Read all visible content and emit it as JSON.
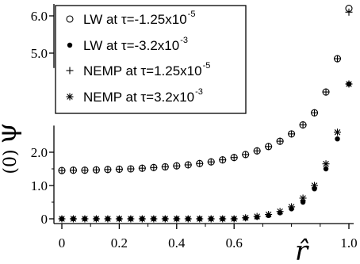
{
  "chart_data": {
    "type": "scatter",
    "xlabel": "r̂",
    "ylabel": "ψ̂",
    "ylabel_superscript": "(0)",
    "xlim": [
      -0.02,
      1.02
    ],
    "ylim": [
      -0.1,
      6.4
    ],
    "y_axis_break": [
      2.8,
      4.6
    ],
    "x_ticks": [
      0,
      0.2,
      0.4,
      0.6,
      1.0
    ],
    "x_tick_labels": [
      "0",
      "0.2",
      "0.4",
      "0.6",
      "1.0"
    ],
    "y_ticks": [
      0,
      1.0,
      2.0,
      5.0,
      6.0
    ],
    "y_tick_labels": [
      "0",
      "1.0",
      "2.0",
      "5.0",
      "6.0"
    ],
    "legend_position": "top-left",
    "series": [
      {
        "name": "LW at τ=-1.25x10",
        "exp": "-5",
        "marker": "open-circle",
        "x": [
          0,
          0.04,
          0.08,
          0.12,
          0.16,
          0.2,
          0.24,
          0.28,
          0.32,
          0.36,
          0.4,
          0.44,
          0.48,
          0.52,
          0.56,
          0.6,
          0.64,
          0.68,
          0.72,
          0.76,
          0.8,
          0.84,
          0.88,
          0.92,
          0.96,
          1.0
        ],
        "values": [
          1.45,
          1.46,
          1.46,
          1.47,
          1.48,
          1.49,
          1.5,
          1.52,
          1.54,
          1.56,
          1.59,
          1.62,
          1.66,
          1.71,
          1.77,
          1.84,
          1.93,
          2.04,
          2.17,
          2.33,
          2.55,
          2.82,
          3.2,
          3.85,
          4.85,
          6.2
        ]
      },
      {
        "name": "LW at τ=-3.2x10",
        "exp": "-3",
        "marker": "filled-circle",
        "x": [
          0,
          0.04,
          0.08,
          0.12,
          0.16,
          0.2,
          0.24,
          0.28,
          0.32,
          0.36,
          0.4,
          0.44,
          0.48,
          0.52,
          0.56,
          0.6,
          0.64,
          0.68,
          0.72,
          0.76,
          0.8,
          0.84,
          0.88,
          0.92,
          0.96,
          1.0
        ],
        "values": [
          0,
          0,
          0,
          0,
          0,
          0,
          0,
          0,
          0,
          0,
          0,
          0,
          0,
          0,
          0,
          0,
          0.02,
          0.05,
          0.1,
          0.18,
          0.3,
          0.5,
          0.9,
          1.5,
          2.4,
          4.1
        ]
      },
      {
        "name": "NEMP at τ=1.25x10",
        "exp": "-5",
        "marker": "plus",
        "x": [
          0,
          0.04,
          0.08,
          0.12,
          0.16,
          0.2,
          0.24,
          0.28,
          0.32,
          0.36,
          0.4,
          0.44,
          0.48,
          0.52,
          0.56,
          0.6,
          0.64,
          0.68,
          0.72,
          0.76,
          0.8,
          0.84,
          0.88,
          0.92,
          0.96,
          1.0
        ],
        "values": [
          1.45,
          1.46,
          1.46,
          1.47,
          1.48,
          1.49,
          1.5,
          1.52,
          1.54,
          1.56,
          1.59,
          1.62,
          1.66,
          1.71,
          1.77,
          1.84,
          1.93,
          2.04,
          2.17,
          2.33,
          2.55,
          2.82,
          3.2,
          3.85,
          4.85,
          6.1
        ]
      },
      {
        "name": "NEMP at τ=3.2x10",
        "exp": "-3",
        "marker": "asterisk",
        "x": [
          0,
          0.04,
          0.08,
          0.12,
          0.16,
          0.2,
          0.24,
          0.28,
          0.32,
          0.36,
          0.4,
          0.44,
          0.48,
          0.52,
          0.56,
          0.6,
          0.64,
          0.68,
          0.72,
          0.76,
          0.8,
          0.84,
          0.88,
          0.92,
          0.96,
          1.0
        ],
        "values": [
          0,
          0,
          0,
          0,
          0,
          0,
          0,
          0,
          0,
          0,
          0,
          0,
          0,
          0,
          0,
          0,
          0.03,
          0.07,
          0.13,
          0.22,
          0.36,
          0.62,
          1.0,
          1.65,
          2.6,
          4.1
        ]
      }
    ]
  }
}
